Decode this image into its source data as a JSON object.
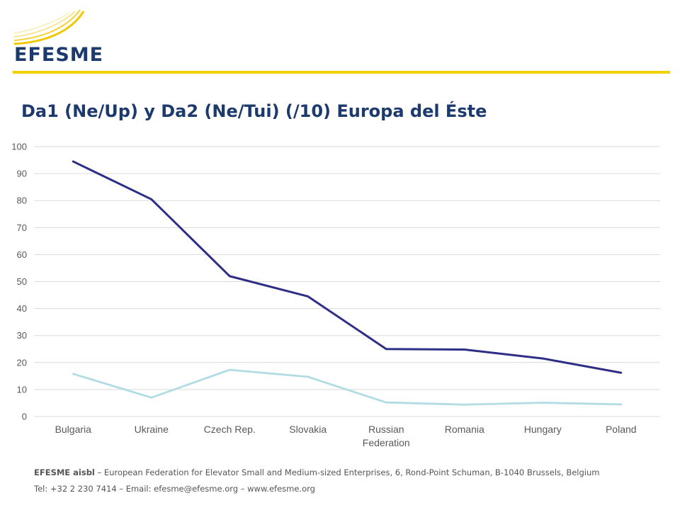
{
  "header": {
    "logo_text": "EFESME",
    "rule_color": "#f0d200",
    "logo_color": "#1d3a6e"
  },
  "slide_title": "Da1 (Ne/Up) y Da2 (Ne/Tui) (/10) Europa del Éste",
  "chart_data": {
    "type": "line",
    "categories": [
      "Bulgaria",
      "Ukraine",
      "Czech Rep.",
      "Slovakia",
      "Russian Federation",
      "Romania",
      "Hungary",
      "Poland"
    ],
    "series": [
      {
        "values": [
          94.5,
          80.5,
          52,
          44.5,
          25,
          24.8,
          21.5,
          16.2
        ],
        "color": "#2e2e86"
      },
      {
        "values": [
          15.8,
          7,
          17.3,
          14.7,
          5.2,
          4.4,
          5.1,
          4.5
        ],
        "color": "#b2dbe3"
      }
    ],
    "yticks": [
      "0",
      "10",
      "20",
      "30",
      "40",
      "50",
      "60",
      "70",
      "80",
      "90",
      "100"
    ],
    "ylim": [
      0,
      100
    ],
    "grid": true,
    "legend": "none"
  },
  "footer": {
    "org_name": "EFESME aisbl",
    "org_line": " – European Federation for Elevator Small and Medium-sized Enterprises, 6, Rond-Point Schuman, B-1040 Brussels, Belgium",
    "contact_line": "Tel: +32 2 230 7414 – Email: efesme@efesme.org – www.efesme.org"
  }
}
